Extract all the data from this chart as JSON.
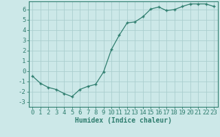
{
  "x": [
    0,
    1,
    2,
    3,
    4,
    5,
    6,
    7,
    8,
    9,
    10,
    11,
    12,
    13,
    14,
    15,
    16,
    17,
    18,
    19,
    20,
    21,
    22,
    23
  ],
  "y": [
    -0.5,
    -1.2,
    -1.6,
    -1.8,
    -2.2,
    -2.5,
    -1.8,
    -1.5,
    -1.3,
    -0.1,
    2.1,
    3.5,
    4.7,
    4.8,
    5.3,
    6.05,
    6.25,
    5.9,
    6.0,
    6.3,
    6.55,
    6.55,
    6.55,
    6.3
  ],
  "line_color": "#2e7d6e",
  "marker": "+",
  "marker_size": 3,
  "marker_linewidth": 1.0,
  "linewidth": 0.9,
  "background_color": "#cce8e8",
  "grid_color": "#aacece",
  "xlabel": "Humidex (Indice chaleur)",
  "xlim": [
    -0.5,
    23.5
  ],
  "ylim": [
    -3.5,
    6.8
  ],
  "yticks": [
    -3,
    -2,
    -1,
    0,
    1,
    2,
    3,
    4,
    5,
    6
  ],
  "xtick_labels": [
    "0",
    "1",
    "2",
    "3",
    "4",
    "5",
    "6",
    "7",
    "8",
    "9",
    "10",
    "11",
    "12",
    "13",
    "14",
    "15",
    "16",
    "17",
    "18",
    "19",
    "20",
    "21",
    "22",
    "23"
  ],
  "label_fontsize": 7,
  "tick_fontsize": 6.5
}
